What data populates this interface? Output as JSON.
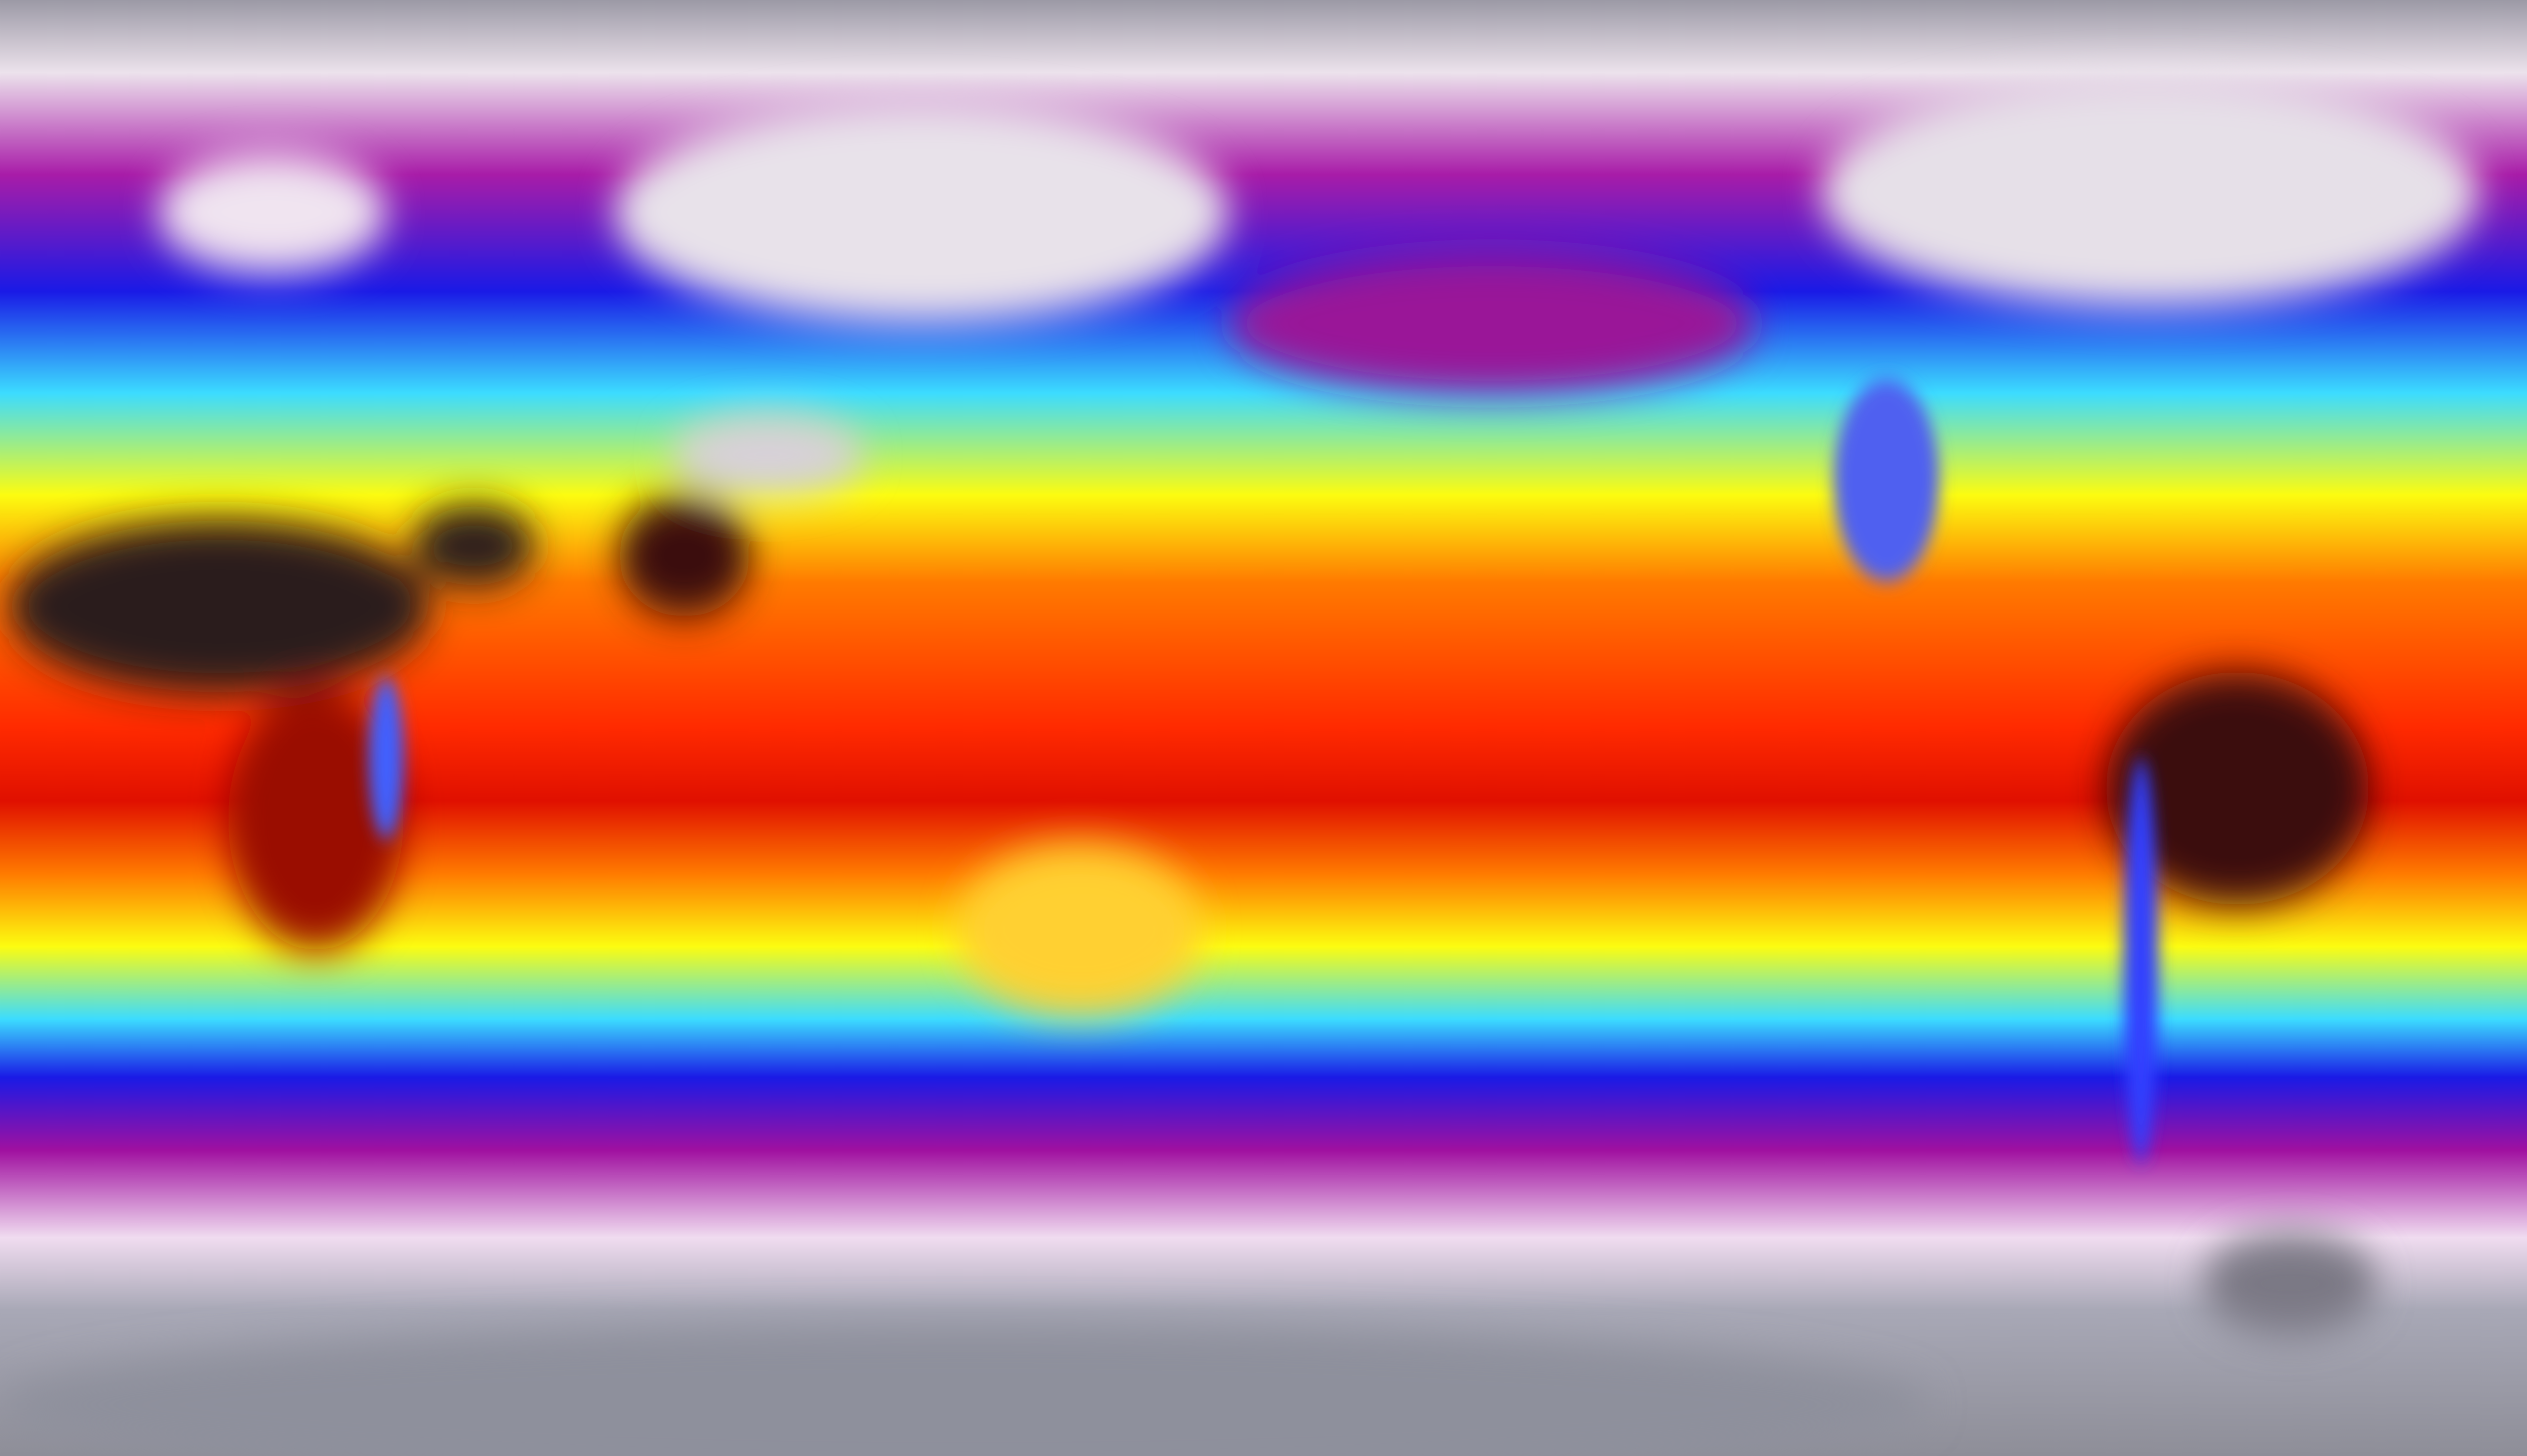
{
  "map": {
    "projection": "equirectangular",
    "variable": "temperature",
    "colormap": [
      "#9c9aa6",
      "#ece2ec",
      "#a81ca8",
      "#1a1ae6",
      "#3cdcff",
      "#fcfc10",
      "#ff7a00",
      "#ff2a00",
      "#e01000",
      "#ff7a00",
      "#fcfc10",
      "#3cdcff",
      "#1a1ae6",
      "#a010a0",
      "#f0dcf0",
      "#a8a8b6",
      "#8e8e98"
    ],
    "hot_spot_color": "#2a1818",
    "cold_land_color": "#e6e2e6"
  }
}
